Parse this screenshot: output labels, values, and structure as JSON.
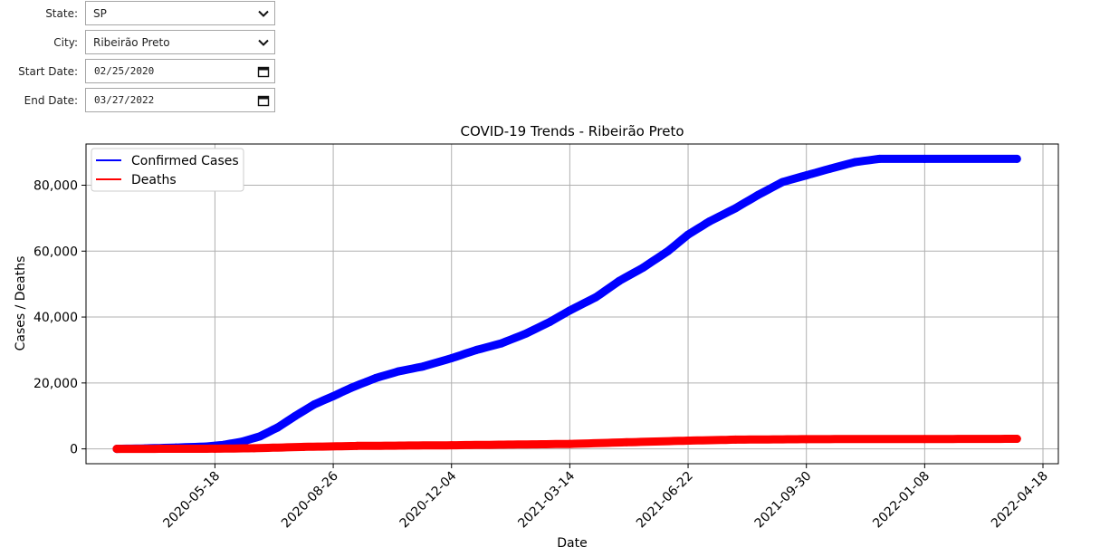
{
  "filters": {
    "state_label": "State:",
    "state_value": "SP",
    "city_label": "City:",
    "city_value": "Ribeirão Preto",
    "start_label": "Start Date:",
    "start_value": "02/25/2020",
    "end_label": "End Date:",
    "end_value": "03/27/2022"
  },
  "icons": {
    "dropdown": "chevron-down-icon",
    "date_picker": "calendar-icon"
  },
  "chart_data": {
    "type": "line",
    "title": "COVID-19 Trends - Ribeirão Preto",
    "xlabel": "Date",
    "ylabel": "Cases / Deaths",
    "x_ticks": [
      "2020-05-18",
      "2020-08-26",
      "2020-12-04",
      "2021-03-14",
      "2021-06-22",
      "2021-09-30",
      "2022-01-08",
      "2022-04-18"
    ],
    "y_ticks": [
      0,
      20000,
      40000,
      60000,
      80000
    ],
    "y_tick_labels": [
      "0",
      "20,000",
      "40,000",
      "60,000",
      "80,000"
    ],
    "xlim": [
      "2020-01-30",
      "2022-05-01"
    ],
    "ylim": [
      -4500,
      92500
    ],
    "grid": true,
    "legend_position": "top-left",
    "series": [
      {
        "name": "Confirmed Cases",
        "color": "#0000ff",
        "points": [
          [
            "2020-02-25",
            0
          ],
          [
            "2020-03-20",
            150
          ],
          [
            "2020-04-15",
            400
          ],
          [
            "2020-05-10",
            700
          ],
          [
            "2020-05-25",
            1200
          ],
          [
            "2020-06-10",
            2200
          ],
          [
            "2020-06-25",
            3800
          ],
          [
            "2020-07-10",
            6500
          ],
          [
            "2020-07-25",
            10000
          ],
          [
            "2020-08-10",
            13500
          ],
          [
            "2020-08-26",
            16000
          ],
          [
            "2020-09-10",
            18500
          ],
          [
            "2020-10-01",
            21500
          ],
          [
            "2020-10-20",
            23500
          ],
          [
            "2020-11-10",
            25000
          ],
          [
            "2020-12-04",
            27500
          ],
          [
            "2020-12-25",
            30000
          ],
          [
            "2021-01-15",
            32000
          ],
          [
            "2021-02-05",
            35000
          ],
          [
            "2021-02-25",
            38500
          ],
          [
            "2021-03-14",
            42000
          ],
          [
            "2021-04-05",
            46000
          ],
          [
            "2021-04-25",
            51000
          ],
          [
            "2021-05-15",
            55000
          ],
          [
            "2021-06-05",
            60000
          ],
          [
            "2021-06-22",
            65000
          ],
          [
            "2021-07-10",
            69000
          ],
          [
            "2021-08-01",
            73000
          ],
          [
            "2021-08-20",
            77000
          ],
          [
            "2021-09-10",
            81000
          ],
          [
            "2021-09-30",
            83000
          ],
          [
            "2021-10-20",
            85000
          ],
          [
            "2021-11-10",
            87000
          ],
          [
            "2021-12-01",
            88000
          ],
          [
            "2022-01-08",
            88000
          ],
          [
            "2022-03-27",
            88000
          ]
        ]
      },
      {
        "name": "Deaths",
        "color": "#ff0000",
        "points": [
          [
            "2020-02-25",
            0
          ],
          [
            "2020-05-18",
            50
          ],
          [
            "2020-06-20",
            200
          ],
          [
            "2020-08-01",
            600
          ],
          [
            "2020-09-15",
            900
          ],
          [
            "2020-12-04",
            1100
          ],
          [
            "2021-03-14",
            1500
          ],
          [
            "2021-05-01",
            2000
          ],
          [
            "2021-06-22",
            2500
          ],
          [
            "2021-08-01",
            2800
          ],
          [
            "2021-09-30",
            2950
          ],
          [
            "2022-01-08",
            3000
          ],
          [
            "2022-03-27",
            3050
          ]
        ]
      }
    ]
  }
}
